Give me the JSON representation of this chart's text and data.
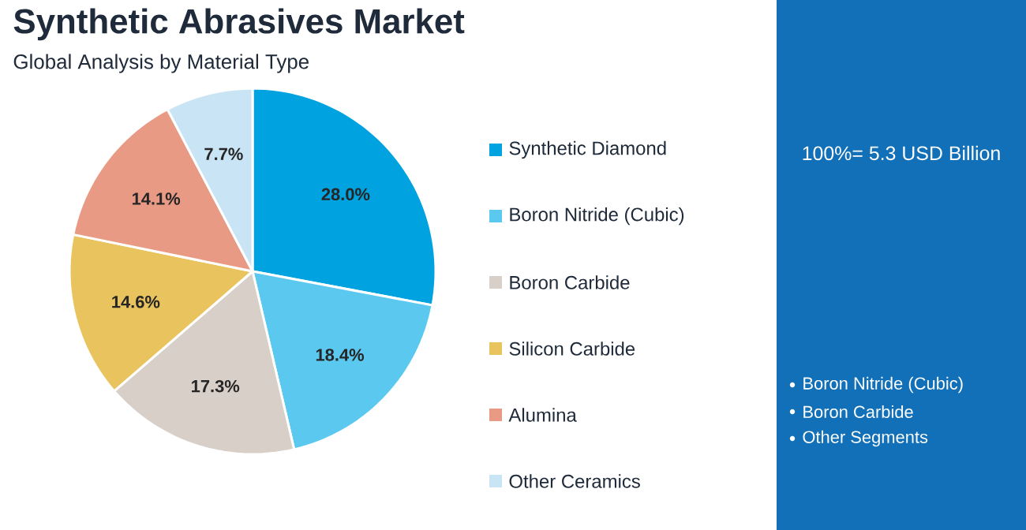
{
  "chart_data": {
    "type": "pie",
    "title": "Synthetic Abrasives Market",
    "subtitle": "Global Analysis by Material Type",
    "categories": [
      "Synthetic Diamond",
      "Boron Nitride (Cubic)",
      "Boron Carbide",
      "Silicon Carbide",
      "Alumina",
      "Other Ceramics"
    ],
    "values": [
      28.0,
      18.4,
      17.3,
      14.6,
      14.1,
      7.7
    ],
    "value_labels": [
      "28.0%",
      "18.4%",
      "17.3%",
      "14.6%",
      "14.1%",
      "7.7%"
    ],
    "colors": [
      "#00a3e0",
      "#5bc8f0",
      "#d9cfc9",
      "#e9c35e",
      "#e99a85",
      "#c9e4f5"
    ],
    "legend": "right",
    "annotations": [
      "100%= 5.3 USD Billion",
      "Boron Nitride (Cubic)",
      "Boron Carbide",
      "Other Segments"
    ]
  }
}
